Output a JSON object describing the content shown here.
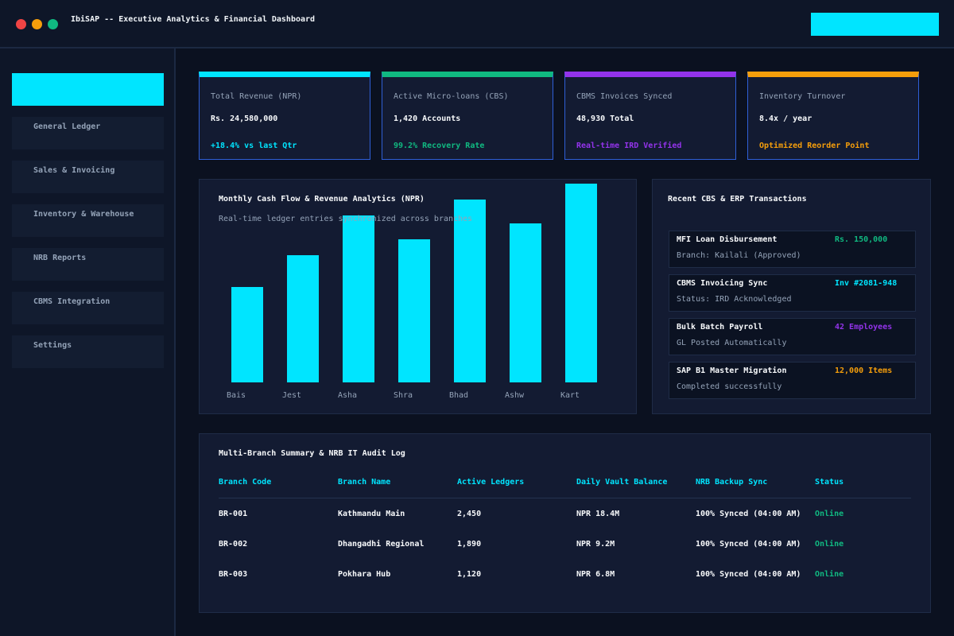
{
  "window": {
    "title": "IbiSAP -- Executive Analytics & Financial Dashboard"
  },
  "sidebar": {
    "items": [
      {
        "label": "General Ledger"
      },
      {
        "label": "Sales & Invoicing"
      },
      {
        "label": "Inventory & Warehouse"
      },
      {
        "label": "NRB Reports"
      },
      {
        "label": "CBMS Integration"
      },
      {
        "label": "Settings"
      }
    ]
  },
  "kpis": [
    {
      "title": "Total Revenue (NPR)",
      "value": "Rs. 24,580,000",
      "sub": "+18.4% vs last Qtr",
      "accent": "#00e5ff"
    },
    {
      "title": "Active Micro-loans (CBS)",
      "value": "1,420 Accounts",
      "sub": "99.2% Recovery Rate",
      "accent": "#10b981"
    },
    {
      "title": "CBMS Invoices Synced",
      "value": "48,930 Total",
      "sub": "Real-time IRD Verified",
      "accent": "#9333ea"
    },
    {
      "title": "Inventory Turnover",
      "value": "8.4x / year",
      "sub": "Optimized Reorder Point",
      "accent": "#f59e0b"
    }
  ],
  "chart_panel": {
    "title": "Monthly Cash Flow & Revenue Analytics (NPR)",
    "subtitle": "Real-time ledger entries synchronized across branches"
  },
  "chart_data": {
    "type": "bar",
    "categories": [
      "Bais",
      "Jest",
      "Asha",
      "Shra",
      "Bhad",
      "Ashw",
      "Kart"
    ],
    "values": [
      120,
      160,
      210,
      180,
      230,
      200,
      250
    ],
    "ylim": [
      0,
      250
    ],
    "grid": false,
    "legend": "none",
    "bar_color": "#00e5ff"
  },
  "transactions": {
    "title": "Recent CBS & ERP Transactions",
    "items": [
      {
        "name": "MFI Loan Disbursement",
        "value": "Rs. 150,000",
        "detail": "Branch: Kailali (Approved)",
        "color": "#10b981"
      },
      {
        "name": "CBMS Invoicing Sync",
        "value": "Inv #2081-948",
        "detail": "Status: IRD Acknowledged",
        "color": "#00e5ff"
      },
      {
        "name": "Bulk Batch Payroll",
        "value": "42 Employees",
        "detail": "GL Posted Automatically",
        "color": "#9333ea"
      },
      {
        "name": "SAP B1 Master Migration",
        "value": "12,000 Items",
        "detail": "Completed successfully",
        "color": "#f59e0b"
      }
    ]
  },
  "audit": {
    "title": "Multi-Branch Summary & NRB IT Audit Log",
    "columns": [
      "Branch Code",
      "Branch Name",
      "Active Ledgers",
      "Daily Vault Balance",
      "NRB Backup Sync",
      "Status"
    ],
    "rows": [
      [
        "BR-001",
        "Kathmandu Main",
        "2,450",
        "NPR 18.4M",
        "100% Synced (04:00 AM)",
        "Online"
      ],
      [
        "BR-002",
        "Dhangadhi Regional",
        "1,890",
        "NPR 9.2M",
        "100% Synced (04:00 AM)",
        "Online"
      ],
      [
        "BR-003",
        "Pokhara Hub",
        "1,120",
        "NPR 6.8M",
        "100% Synced (04:00 AM)",
        "Online"
      ]
    ],
    "status_color": "#10b981"
  }
}
